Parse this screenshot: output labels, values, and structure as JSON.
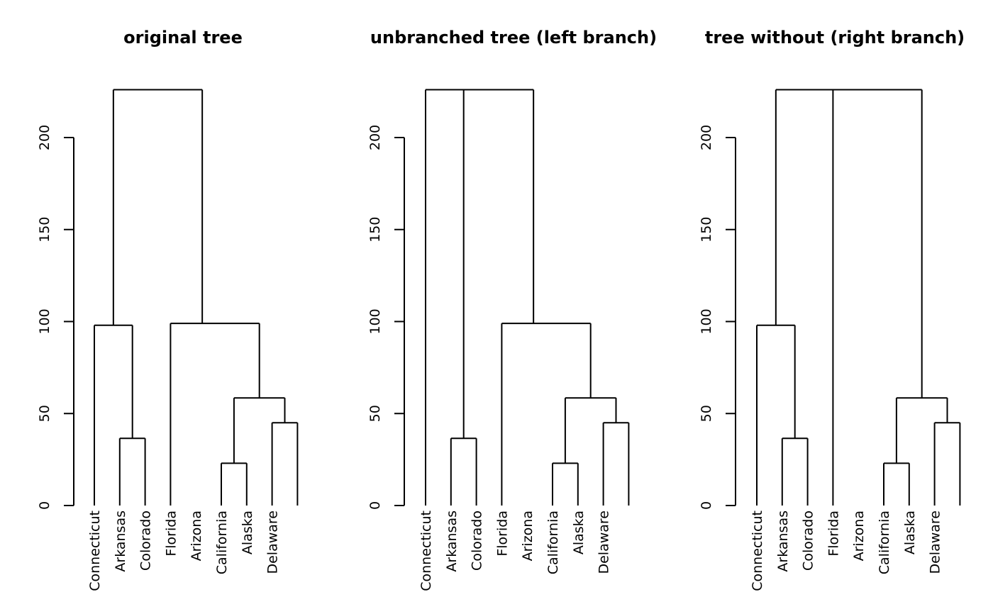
{
  "chart_data": [
    {
      "type": "dendrogram",
      "title": "original tree",
      "xlabel": "",
      "ylabel": "",
      "ylim": [
        0,
        226
      ],
      "yticks": [
        0,
        50,
        100,
        150,
        200
      ],
      "leaves": [
        "Connecticut",
        "Arkansas",
        "Colorado",
        "Florida",
        "Arizona",
        "California",
        "Alaska",
        "Delaware"
      ],
      "segments": [
        {
          "type": "v",
          "x": 6,
          "y1": 0,
          "y2": 23
        },
        {
          "type": "v",
          "x": 7,
          "y1": 0,
          "y2": 23
        },
        {
          "type": "h",
          "y": 23,
          "x1": 6,
          "x2": 7
        },
        {
          "type": "v",
          "x": 2,
          "y1": 0,
          "y2": 36.5
        },
        {
          "type": "v",
          "x": 3,
          "y1": 0,
          "y2": 36.5
        },
        {
          "type": "h",
          "y": 36.5,
          "x1": 2,
          "x2": 3
        },
        {
          "type": "v",
          "x": 8,
          "y1": 0,
          "y2": 45
        },
        {
          "type": "v",
          "x": 9,
          "y1": 0,
          "y2": 45
        },
        {
          "type": "h",
          "y": 45,
          "x1": 8,
          "x2": 9
        },
        {
          "type": "v",
          "x": 6.5,
          "y1": 23,
          "y2": 58.5
        },
        {
          "type": "v",
          "x": 8.5,
          "y1": 45,
          "y2": 58.5
        },
        {
          "type": "h",
          "y": 58.5,
          "x1": 6.5,
          "x2": 8.5
        },
        {
          "type": "v",
          "x": 1,
          "y1": 0,
          "y2": 98
        },
        {
          "type": "v",
          "x": 2.5,
          "y1": 36.5,
          "y2": 98
        },
        {
          "type": "h",
          "y": 98,
          "x1": 1,
          "x2": 2.5
        },
        {
          "type": "v",
          "x": 4,
          "y1": 0,
          "y2": 99
        },
        {
          "type": "v",
          "x": 7.5,
          "y1": 58.5,
          "y2": 99
        },
        {
          "type": "h",
          "y": 99,
          "x1": 4,
          "x2": 7.5
        },
        {
          "type": "v",
          "x": 1.75,
          "y1": 98,
          "y2": 226
        },
        {
          "type": "v",
          "x": 5.25,
          "y1": 99,
          "y2": 226
        },
        {
          "type": "h",
          "y": 226,
          "x1": 1.75,
          "x2": 5.25
        }
      ]
    },
    {
      "type": "dendrogram",
      "title": "unbranched tree (left branch)",
      "xlabel": "",
      "ylabel": "",
      "ylim": [
        0,
        226
      ],
      "yticks": [
        0,
        50,
        100,
        150,
        200
      ],
      "leaves": [
        "Connecticut",
        "Arkansas",
        "Colorado",
        "Florida",
        "Arizona",
        "California",
        "Alaska",
        "Delaware"
      ],
      "segments": [
        {
          "type": "v",
          "x": 6,
          "y1": 0,
          "y2": 23
        },
        {
          "type": "v",
          "x": 7,
          "y1": 0,
          "y2": 23
        },
        {
          "type": "h",
          "y": 23,
          "x1": 6,
          "x2": 7
        },
        {
          "type": "v",
          "x": 2,
          "y1": 0,
          "y2": 36.5
        },
        {
          "type": "v",
          "x": 3,
          "y1": 0,
          "y2": 36.5
        },
        {
          "type": "h",
          "y": 36.5,
          "x1": 2,
          "x2": 3
        },
        {
          "type": "v",
          "x": 8,
          "y1": 0,
          "y2": 45
        },
        {
          "type": "v",
          "x": 9,
          "y1": 0,
          "y2": 45
        },
        {
          "type": "h",
          "y": 45,
          "x1": 8,
          "x2": 9
        },
        {
          "type": "v",
          "x": 6.5,
          "y1": 23,
          "y2": 58.5
        },
        {
          "type": "v",
          "x": 8.5,
          "y1": 45,
          "y2": 58.5
        },
        {
          "type": "h",
          "y": 58.5,
          "x1": 6.5,
          "x2": 8.5
        },
        {
          "type": "v",
          "x": 4,
          "y1": 0,
          "y2": 99
        },
        {
          "type": "v",
          "x": 7.5,
          "y1": 58.5,
          "y2": 99
        },
        {
          "type": "h",
          "y": 99,
          "x1": 4,
          "x2": 7.5
        },
        {
          "type": "v",
          "x": 1,
          "y1": 0,
          "y2": 226
        },
        {
          "type": "v",
          "x": 2.5,
          "y1": 36.5,
          "y2": 226
        },
        {
          "type": "v",
          "x": 5.25,
          "y1": 99,
          "y2": 226
        },
        {
          "type": "h",
          "y": 226,
          "x1": 1,
          "x2": 5.25
        }
      ]
    },
    {
      "type": "dendrogram",
      "title": "tree without  (right branch)",
      "xlabel": "",
      "ylabel": "",
      "ylim": [
        0,
        226
      ],
      "yticks": [
        0,
        50,
        100,
        150,
        200
      ],
      "leaves": [
        "Connecticut",
        "Arkansas",
        "Colorado",
        "Florida",
        "Arizona",
        "California",
        "Alaska",
        "Delaware"
      ],
      "segments": [
        {
          "type": "v",
          "x": 6,
          "y1": 0,
          "y2": 23
        },
        {
          "type": "v",
          "x": 7,
          "y1": 0,
          "y2": 23
        },
        {
          "type": "h",
          "y": 23,
          "x1": 6,
          "x2": 7
        },
        {
          "type": "v",
          "x": 2,
          "y1": 0,
          "y2": 36.5
        },
        {
          "type": "v",
          "x": 3,
          "y1": 0,
          "y2": 36.5
        },
        {
          "type": "h",
          "y": 36.5,
          "x1": 2,
          "x2": 3
        },
        {
          "type": "v",
          "x": 8,
          "y1": 0,
          "y2": 45
        },
        {
          "type": "v",
          "x": 9,
          "y1": 0,
          "y2": 45
        },
        {
          "type": "h",
          "y": 45,
          "x1": 8,
          "x2": 9
        },
        {
          "type": "v",
          "x": 6.5,
          "y1": 23,
          "y2": 58.5
        },
        {
          "type": "v",
          "x": 8.5,
          "y1": 45,
          "y2": 58.5
        },
        {
          "type": "h",
          "y": 58.5,
          "x1": 6.5,
          "x2": 8.5
        },
        {
          "type": "v",
          "x": 1,
          "y1": 0,
          "y2": 98
        },
        {
          "type": "v",
          "x": 2.5,
          "y1": 36.5,
          "y2": 98
        },
        {
          "type": "h",
          "y": 98,
          "x1": 1,
          "x2": 2.5
        },
        {
          "type": "v",
          "x": 1.75,
          "y1": 98,
          "y2": 226
        },
        {
          "type": "v",
          "x": 4,
          "y1": 0,
          "y2": 226
        },
        {
          "type": "v",
          "x": 7.5,
          "y1": 58.5,
          "y2": 226
        },
        {
          "type": "h",
          "y": 226,
          "x1": 1.75,
          "x2": 7.5
        }
      ]
    }
  ]
}
